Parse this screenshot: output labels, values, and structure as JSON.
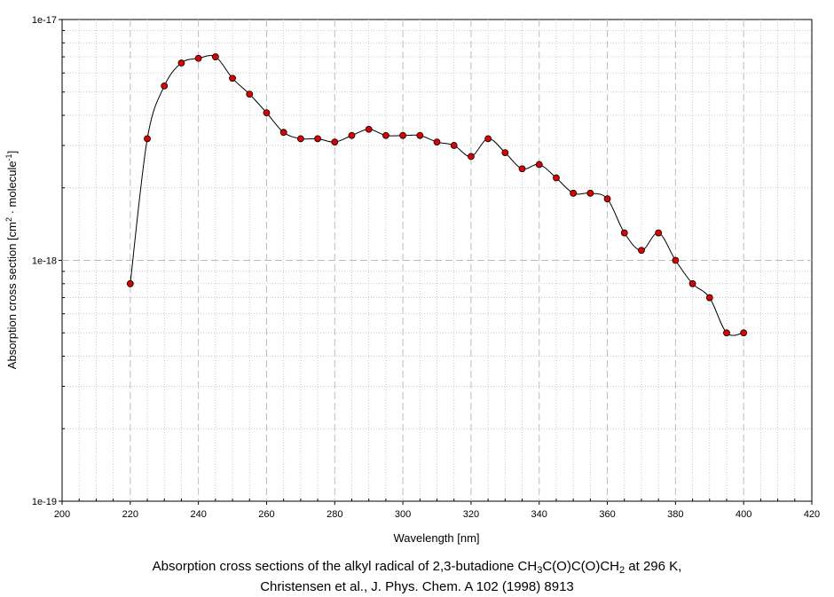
{
  "chart_data": {
    "type": "line",
    "x": [
      220,
      225,
      230,
      235,
      240,
      245,
      250,
      255,
      260,
      265,
      270,
      275,
      280,
      285,
      290,
      295,
      300,
      305,
      310,
      315,
      320,
      325,
      330,
      335,
      340,
      345,
      350,
      355,
      360,
      365,
      370,
      375,
      380,
      385,
      390,
      395,
      400
    ],
    "series": [
      {
        "values": [
          8e-19,
          3.2e-18,
          5.3e-18,
          6.6e-18,
          6.9e-18,
          7e-18,
          5.7e-18,
          4.9e-18,
          4.1e-18,
          3.4e-18,
          3.2e-18,
          3.2e-18,
          3.1e-18,
          3.3e-18,
          3.5e-18,
          3.3e-18,
          3.3e-18,
          3.3e-18,
          3.1e-18,
          3e-18,
          2.7e-18,
          3.2e-18,
          2.8e-18,
          2.4e-18,
          2.5e-18,
          2.2e-18,
          1.9e-18,
          1.9e-18,
          1.8e-18,
          1.3e-18,
          1.1e-18,
          1.3e-18,
          1e-18,
          8e-19,
          7e-19,
          5e-19,
          5e-19
        ],
        "marker_color": "#e00000",
        "line_color": "#000000"
      }
    ],
    "xlabel": "Wavelength [nm]",
    "ylabel": {
      "pre": "Absorption cross section [cm",
      "sup1": "2",
      "mid": " · molecule",
      "sup2": "-1",
      "post": "]"
    },
    "xlim": [
      200,
      420
    ],
    "ylim": [
      1e-19,
      1e-17
    ],
    "yscale": "log",
    "xticks": [
      "200",
      "220",
      "240",
      "260",
      "280",
      "300",
      "320",
      "340",
      "360",
      "380",
      "400",
      "420"
    ],
    "yticks": [
      "1e-19",
      "1e-18",
      "1e-17"
    ],
    "grid": true
  },
  "caption": {
    "line1_a": "Absorption cross sections of the alkyl radical of 2,3-butadione CH",
    "line1_sub1": "3",
    "line1_b": "C(O)C(O)CH",
    "line1_sub2": "2",
    "line1_c": " at 296 K,",
    "line2": "Christensen et al., J. Phys. Chem. A 102 (1998) 8913"
  }
}
